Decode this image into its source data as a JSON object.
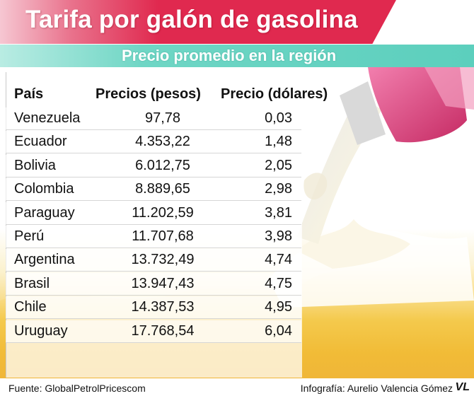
{
  "title": "Tarifa por galón de gasolina",
  "subtitle": "Precio promedio en la región",
  "table": {
    "headers": {
      "country": "País",
      "pesos": "Precios (pesos)",
      "dollars": "Precio (dólares)"
    },
    "rows": [
      {
        "country": "Venezuela",
        "pesos": "97,78",
        "dollars": "0,03"
      },
      {
        "country": "Ecuador",
        "pesos": "4.353,22",
        "dollars": "1,48"
      },
      {
        "country": "Bolivia",
        "pesos": "6.012,75",
        "dollars": "2,05"
      },
      {
        "country": "Colombia",
        "pesos": "8.889,65",
        "dollars": "2,98"
      },
      {
        "country": "Paraguay",
        "pesos": "11.202,59",
        "dollars": "3,81"
      },
      {
        "country": "Perú",
        "pesos": "11.707,68",
        "dollars": "3,98"
      },
      {
        "country": "Argentina",
        "pesos": "13.732,49",
        "dollars": "4,74"
      },
      {
        "country": "Brasil",
        "pesos": "13.947,43",
        "dollars": "4,75"
      },
      {
        "country": "Chile",
        "pesos": "14.387,53",
        "dollars": "4,95"
      },
      {
        "country": "Uruguay",
        "pesos": "17.768,54",
        "dollars": "6,04"
      }
    ]
  },
  "footer": {
    "source": "Fuente: GlobalPetrolPricescom",
    "credit": "Infografía: Aurelio Valencia Gómez",
    "logo": "VL"
  },
  "colors": {
    "title_bar": "#e0294f",
    "subtitle_bar": "#5ccfbd",
    "fuel": "#f2bb2e",
    "nozzle": "#e04c86"
  }
}
